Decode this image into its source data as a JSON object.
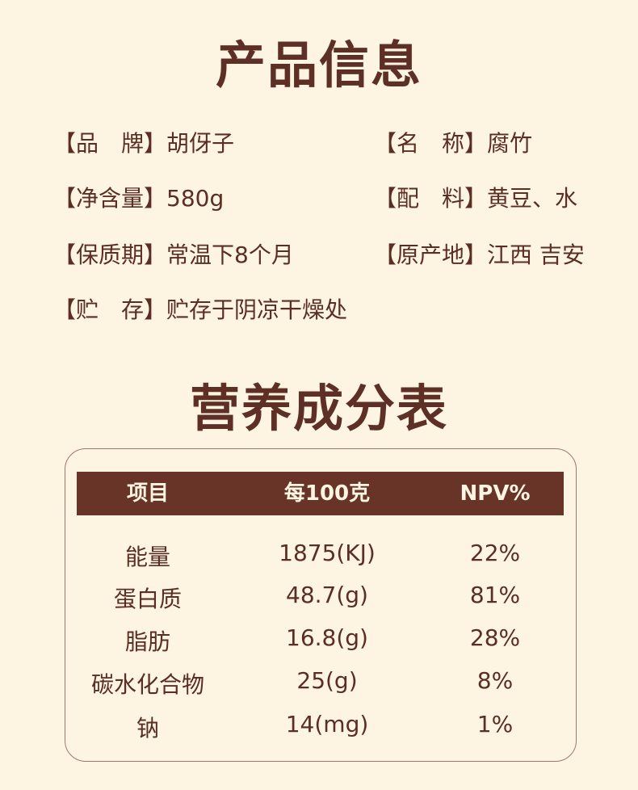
{
  "product_info": {
    "title": "产品信息",
    "items": [
      {
        "label": "【品　牌】",
        "value": "胡伢子"
      },
      {
        "label": "【名　称】",
        "value": "腐竹"
      },
      {
        "label": "【净含量】",
        "value": "580g"
      },
      {
        "label": "【配　料】",
        "value": "黄豆、水"
      },
      {
        "label": "【保质期】",
        "value": "常温下8个月"
      },
      {
        "label": "【原产地】",
        "value": "江西 吉安"
      },
      {
        "label": "【贮　存】",
        "value": "贮存于阴凉干燥处"
      }
    ]
  },
  "nutrition": {
    "title": "营养成分表",
    "headers": [
      "项目",
      "每100克",
      "NPV%"
    ],
    "rows": [
      [
        "能量",
        "1875(KJ)",
        "22%"
      ],
      [
        "蛋白质",
        "48.7(g)",
        "81%"
      ],
      [
        "脂肪",
        "16.8(g)",
        "28%"
      ],
      [
        "碳水化合物",
        "25(g)",
        "8%"
      ],
      [
        "钠",
        "14(mg)",
        "1%"
      ]
    ]
  },
  "colors": {
    "background": "#fdf5e2",
    "accent": "#673427"
  }
}
